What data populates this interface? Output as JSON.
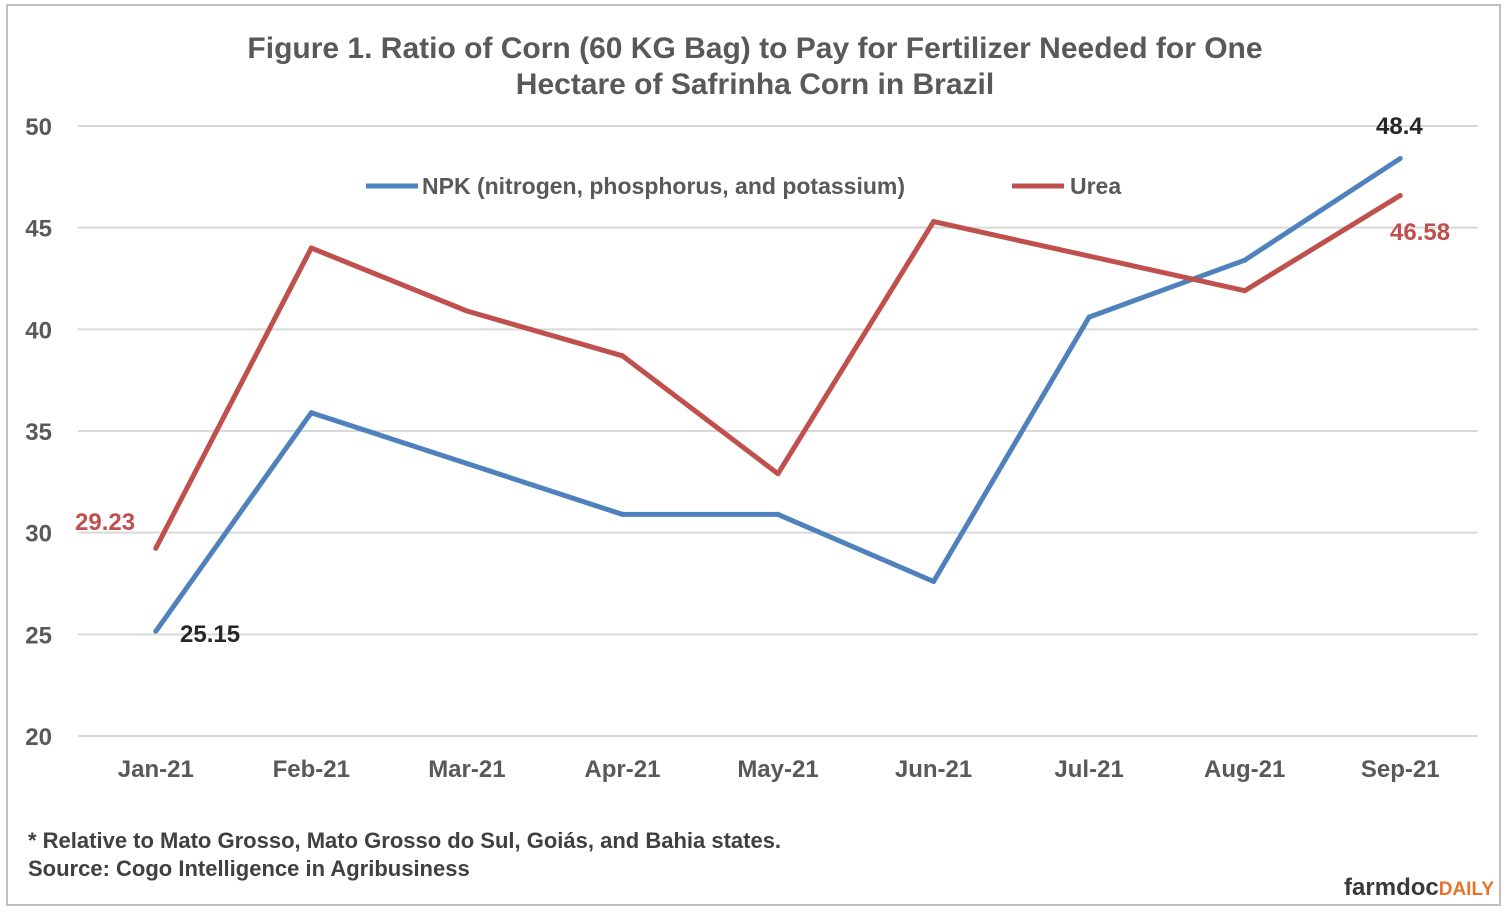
{
  "chart_data": {
    "type": "line",
    "title_line1": "Figure 1. Ratio of Corn (60 KG Bag) to Pay for Fertilizer Needed for One",
    "title_line2": "Hectare of Safrinha Corn in Brazil",
    "categories": [
      "Jan-21",
      "Feb-21",
      "Mar-21",
      "Apr-21",
      "May-21",
      "Jun-21",
      "Jul-21",
      "Aug-21",
      "Sep-21"
    ],
    "ylim": [
      20,
      50
    ],
    "yticks": [
      "20",
      "25",
      "30",
      "35",
      "40",
      "45",
      "50"
    ],
    "grid": true,
    "legend_position": "top",
    "series": [
      {
        "name": "NPK (nitrogen, phosphorus, and potassium)",
        "color": "#4f81bd",
        "values": [
          25.15,
          35.9,
          33.4,
          30.9,
          30.9,
          27.6,
          40.6,
          43.4,
          48.4
        ]
      },
      {
        "name": "Urea",
        "color": "#c0504d",
        "values": [
          29.23,
          44.0,
          40.9,
          38.7,
          32.9,
          45.3,
          43.6,
          41.9,
          46.58
        ]
      }
    ],
    "data_labels": [
      {
        "text": "25.15",
        "color": "#262626"
      },
      {
        "text": "29.23",
        "color": "#c0504d"
      },
      {
        "text": "48.4",
        "color": "#262626"
      },
      {
        "text": "46.58",
        "color": "#c0504d"
      }
    ]
  },
  "footnote": "* Relative to Mato Grosso, Mato Grosso do Sul, Goiás, and Bahia states.",
  "source": "Source: Cogo Intelligence in Agribusiness",
  "brand": {
    "part1": "farmdoc",
    "part2": "DAILY"
  }
}
